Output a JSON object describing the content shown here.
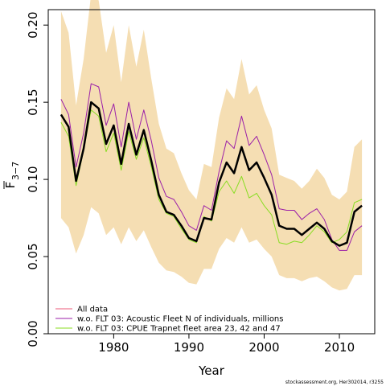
{
  "chart_data": {
    "type": "line",
    "xlabel": "Year",
    "ylabel_main": "F",
    "ylabel_sub": "3−7",
    "xlim": [
      1971.3,
      2014.7
    ],
    "ylim": [
      0,
      0.21
    ],
    "x_ticks": [
      1980,
      1990,
      2000,
      2010
    ],
    "x_tick_labels": [
      "1980",
      "1990",
      "2000",
      "2010"
    ],
    "y_ticks": [
      0,
      0.05,
      0.1,
      0.15,
      0.2
    ],
    "y_tick_labels": [
      "0.00",
      "0.05",
      "0.10",
      "0.15",
      "0.20"
    ],
    "years": [
      1973,
      1974,
      1975,
      1976,
      1977,
      1978,
      1979,
      1980,
      1981,
      1982,
      1983,
      1984,
      1985,
      1986,
      1987,
      1988,
      1989,
      1990,
      1991,
      1992,
      1993,
      1994,
      1995,
      1996,
      1997,
      1998,
      1999,
      2000,
      2001,
      2002,
      2003,
      2004,
      2005,
      2006,
      2007,
      2008,
      2009,
      2010,
      2011,
      2012,
      2013
    ],
    "band": {
      "color": "#f5deb3",
      "upper": [
        0.209,
        0.195,
        0.148,
        0.178,
        0.22,
        0.216,
        0.182,
        0.2,
        0.163,
        0.2,
        0.173,
        0.197,
        0.165,
        0.136,
        0.12,
        0.117,
        0.104,
        0.093,
        0.087,
        0.11,
        0.108,
        0.14,
        0.159,
        0.152,
        0.178,
        0.155,
        0.161,
        0.145,
        0.133,
        0.103,
        0.101,
        0.099,
        0.094,
        0.099,
        0.107,
        0.101,
        0.09,
        0.087,
        0.092,
        0.121,
        0.126
      ],
      "lower": [
        0.075,
        0.069,
        0.052,
        0.064,
        0.082,
        0.078,
        0.064,
        0.069,
        0.058,
        0.069,
        0.06,
        0.067,
        0.056,
        0.046,
        0.041,
        0.04,
        0.037,
        0.033,
        0.032,
        0.042,
        0.042,
        0.055,
        0.062,
        0.059,
        0.069,
        0.059,
        0.061,
        0.055,
        0.05,
        0.038,
        0.036,
        0.036,
        0.034,
        0.036,
        0.037,
        0.034,
        0.03,
        0.028,
        0.029,
        0.038,
        0.038
      ]
    },
    "series": [
      {
        "name": "All data",
        "color": "#000000",
        "width": 2.5,
        "in_legend": false,
        "values": [
          0.142,
          0.134,
          0.099,
          0.12,
          0.15,
          0.146,
          0.123,
          0.135,
          0.11,
          0.136,
          0.116,
          0.132,
          0.112,
          0.09,
          0.079,
          0.077,
          0.07,
          0.062,
          0.06,
          0.075,
          0.074,
          0.098,
          0.111,
          0.104,
          0.121,
          0.106,
          0.111,
          0.101,
          0.09,
          0.07,
          0.068,
          0.068,
          0.064,
          0.068,
          0.072,
          0.068,
          0.06,
          0.057,
          0.059,
          0.079,
          0.083
        ]
      },
      {
        "name": "All data",
        "color": "#ee5a7a",
        "width": 1,
        "in_legend": true,
        "values": [
          0.142,
          0.134,
          0.099,
          0.12,
          0.15,
          0.146,
          0.123,
          0.135,
          0.11,
          0.136,
          0.116,
          0.132,
          0.112,
          0.09,
          0.079,
          0.077,
          0.07,
          0.062,
          0.06,
          0.075,
          0.074,
          0.098,
          0.111,
          0.104,
          0.121,
          0.106,
          0.111,
          0.101,
          0.09,
          0.07,
          0.068,
          0.068,
          0.064,
          0.068,
          0.072,
          0.068,
          0.06,
          0.057,
          0.059,
          0.079,
          0.083
        ]
      },
      {
        "name": "w.o. FLT 03: Acoustic Fleet   N of individuals, millions",
        "color": "#9b1fa8",
        "width": 1,
        "in_legend": true,
        "values": [
          0.152,
          0.142,
          0.108,
          0.13,
          0.162,
          0.16,
          0.135,
          0.149,
          0.121,
          0.15,
          0.126,
          0.145,
          0.125,
          0.101,
          0.089,
          0.087,
          0.079,
          0.07,
          0.067,
          0.083,
          0.08,
          0.105,
          0.125,
          0.12,
          0.141,
          0.122,
          0.128,
          0.116,
          0.103,
          0.081,
          0.08,
          0.08,
          0.074,
          0.078,
          0.081,
          0.074,
          0.061,
          0.054,
          0.054,
          0.066,
          0.07
        ]
      },
      {
        "name": "w.o. FLT 03: CPUE Trapnet fleet area 23, 42 and 47",
        "color": "#88dd22",
        "width": 1,
        "in_legend": true,
        "values": [
          0.137,
          0.128,
          0.096,
          0.119,
          0.145,
          0.141,
          0.118,
          0.13,
          0.106,
          0.131,
          0.113,
          0.127,
          0.108,
          0.087,
          0.078,
          0.076,
          0.068,
          0.061,
          0.059,
          0.076,
          0.073,
          0.092,
          0.099,
          0.091,
          0.102,
          0.088,
          0.091,
          0.083,
          0.077,
          0.059,
          0.058,
          0.06,
          0.059,
          0.064,
          0.07,
          0.066,
          0.059,
          0.061,
          0.066,
          0.085,
          0.087
        ]
      }
    ],
    "legend_position": "bottom-left",
    "grid": false
  },
  "footer_text": "stockassessment.org, Her302014, r3255"
}
